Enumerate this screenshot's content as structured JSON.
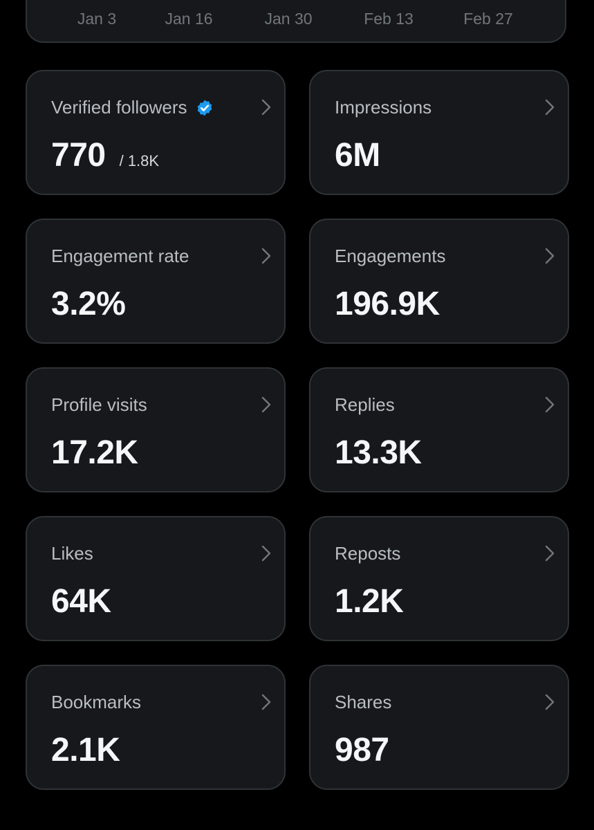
{
  "chart": {
    "x_ticks": [
      "Jan 3",
      "Jan 16",
      "Jan 30",
      "Feb 13",
      "Feb 27"
    ]
  },
  "stats": [
    {
      "label": "Verified followers",
      "value": "770",
      "sub": "/ 1.8K",
      "icon": "verified-badge-icon"
    },
    {
      "label": "Impressions",
      "value": "6M"
    },
    {
      "label": "Engagement rate",
      "value": "3.2%"
    },
    {
      "label": "Engagements",
      "value": "196.9K"
    },
    {
      "label": "Profile visits",
      "value": "17.2K"
    },
    {
      "label": "Replies",
      "value": "13.3K"
    },
    {
      "label": "Likes",
      "value": "64K"
    },
    {
      "label": "Reposts",
      "value": "1.2K"
    },
    {
      "label": "Bookmarks",
      "value": "2.1K"
    },
    {
      "label": "Shares",
      "value": "987"
    }
  ],
  "colors": {
    "background": "#000000",
    "card": "#16181c",
    "card_border": "#2f3336",
    "verified": "#1d9bf0",
    "muted": "#71767b"
  }
}
